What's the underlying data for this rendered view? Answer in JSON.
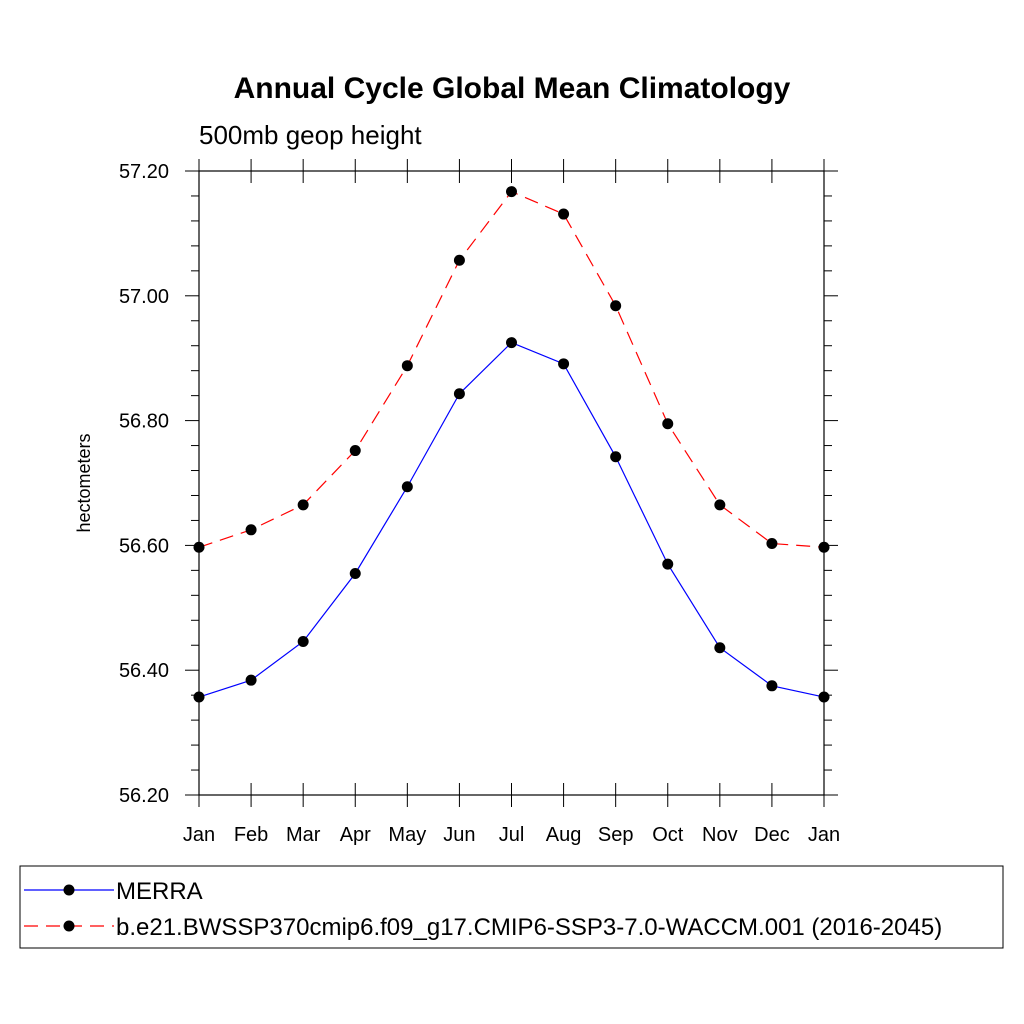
{
  "chart_data": {
    "type": "line",
    "title": "Annual Cycle Global Mean Climatology",
    "subtitle": "500mb geop height",
    "xlabel": "",
    "ylabel": "hectometers",
    "categories": [
      "Jan",
      "Feb",
      "Mar",
      "Apr",
      "May",
      "Jun",
      "Jul",
      "Aug",
      "Sep",
      "Oct",
      "Nov",
      "Dec",
      "Jan"
    ],
    "ylim": [
      56.2,
      57.2
    ],
    "yticks": [
      "56.20",
      "56.40",
      "56.60",
      "56.80",
      "57.00",
      "57.20"
    ],
    "legend_placement": "bottom",
    "series": [
      {
        "name": "MERRA",
        "color": "#0000ff",
        "line_style": "solid",
        "marker": "filled-circle",
        "values": [
          56.357,
          56.384,
          56.446,
          56.555,
          56.694,
          56.843,
          56.925,
          56.891,
          56.742,
          56.57,
          56.436,
          56.375,
          56.357
        ]
      },
      {
        "name": "b.e21.BWSSP370cmip6.f09_g17.CMIP6-SSP3-7.0-WACCM.001 (2016-2045)",
        "color": "#ff0000",
        "line_style": "dashed",
        "marker": "filled-circle",
        "values": [
          56.597,
          56.625,
          56.665,
          56.752,
          56.888,
          57.057,
          57.167,
          57.131,
          56.984,
          56.795,
          56.665,
          56.603,
          56.597
        ]
      }
    ]
  }
}
